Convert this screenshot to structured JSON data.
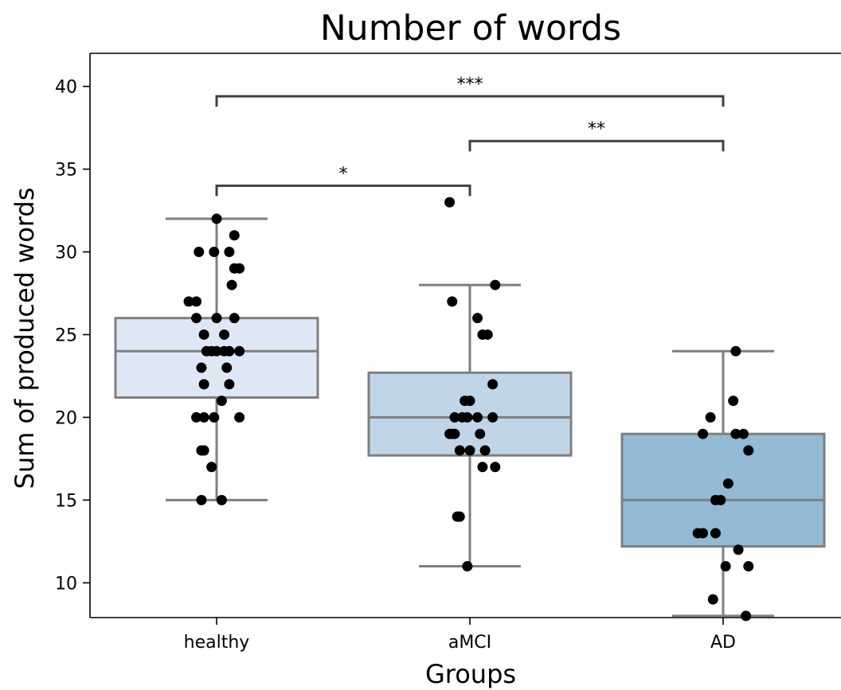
{
  "chart_data": {
    "type": "box",
    "title": "Number of words",
    "xlabel": "Groups",
    "ylabel": "Sum of produced words",
    "ylim": [
      7.9,
      42
    ],
    "yticks": [
      10,
      15,
      20,
      25,
      30,
      35,
      40
    ],
    "categories": [
      "healthy",
      "aMCI",
      "AD"
    ],
    "groups": [
      {
        "name": "healthy",
        "color": "#dde8f4",
        "min": 15,
        "q1": 21.2,
        "median": 24,
        "q3": 26,
        "max": 32,
        "points": [
          {
            "dx": 0.0,
            "y": 32
          },
          {
            "dx": 0.07,
            "y": 31
          },
          {
            "dx": -0.01,
            "y": 30
          },
          {
            "dx": -0.07,
            "y": 30
          },
          {
            "dx": 0.05,
            "y": 30
          },
          {
            "dx": 0.07,
            "y": 29
          },
          {
            "dx": 0.09,
            "y": 29
          },
          {
            "dx": 0.06,
            "y": 28
          },
          {
            "dx": -0.11,
            "y": 27
          },
          {
            "dx": -0.08,
            "y": 27
          },
          {
            "dx": -0.08,
            "y": 26
          },
          {
            "dx": 0.0,
            "y": 26
          },
          {
            "dx": 0.07,
            "y": 26
          },
          {
            "dx": -0.05,
            "y": 25
          },
          {
            "dx": 0.03,
            "y": 25
          },
          {
            "dx": -0.04,
            "y": 24
          },
          {
            "dx": -0.02,
            "y": 24
          },
          {
            "dx": 0.0,
            "y": 24
          },
          {
            "dx": 0.03,
            "y": 24
          },
          {
            "dx": 0.05,
            "y": 24
          },
          {
            "dx": 0.09,
            "y": 24
          },
          {
            "dx": -0.06,
            "y": 23
          },
          {
            "dx": 0.04,
            "y": 23
          },
          {
            "dx": -0.05,
            "y": 22
          },
          {
            "dx": 0.05,
            "y": 22
          },
          {
            "dx": 0.02,
            "y": 21
          },
          {
            "dx": -0.08,
            "y": 20
          },
          {
            "dx": -0.05,
            "y": 20
          },
          {
            "dx": -0.01,
            "y": 20
          },
          {
            "dx": 0.09,
            "y": 20
          },
          {
            "dx": -0.06,
            "y": 18
          },
          {
            "dx": -0.05,
            "y": 18
          },
          {
            "dx": -0.02,
            "y": 17
          },
          {
            "dx": -0.06,
            "y": 15
          },
          {
            "dx": 0.02,
            "y": 15
          }
        ]
      },
      {
        "name": "aMCI",
        "color": "#c0d5e7",
        "min": 11,
        "q1": 17.7,
        "median": 20,
        "q3": 22.7,
        "max": 28,
        "points": [
          {
            "dx": -0.08,
            "y": 33
          },
          {
            "dx": 0.1,
            "y": 28
          },
          {
            "dx": -0.07,
            "y": 27
          },
          {
            "dx": 0.03,
            "y": 26
          },
          {
            "dx": 0.05,
            "y": 25
          },
          {
            "dx": 0.07,
            "y": 25
          },
          {
            "dx": 0.09,
            "y": 22
          },
          {
            "dx": -0.02,
            "y": 21
          },
          {
            "dx": 0.0,
            "y": 21
          },
          {
            "dx": -0.06,
            "y": 20
          },
          {
            "dx": -0.03,
            "y": 20
          },
          {
            "dx": -0.01,
            "y": 20
          },
          {
            "dx": 0.03,
            "y": 20
          },
          {
            "dx": 0.09,
            "y": 20
          },
          {
            "dx": -0.08,
            "y": 19
          },
          {
            "dx": -0.07,
            "y": 19
          },
          {
            "dx": -0.06,
            "y": 19
          },
          {
            "dx": 0.04,
            "y": 19
          },
          {
            "dx": -0.04,
            "y": 18
          },
          {
            "dx": 0.0,
            "y": 18
          },
          {
            "dx": 0.06,
            "y": 18
          },
          {
            "dx": 0.05,
            "y": 17
          },
          {
            "dx": 0.1,
            "y": 17
          },
          {
            "dx": -0.05,
            "y": 14
          },
          {
            "dx": -0.04,
            "y": 14
          },
          {
            "dx": -0.01,
            "y": 11
          }
        ]
      },
      {
        "name": "AD",
        "color": "#92bad5",
        "min": 8,
        "q1": 12.2,
        "median": 15,
        "q3": 19,
        "max": 24,
        "points": [
          {
            "dx": 0.05,
            "y": 24
          },
          {
            "dx": 0.04,
            "y": 21
          },
          {
            "dx": -0.05,
            "y": 20
          },
          {
            "dx": -0.08,
            "y": 19
          },
          {
            "dx": 0.05,
            "y": 19
          },
          {
            "dx": 0.08,
            "y": 19
          },
          {
            "dx": 0.1,
            "y": 18
          },
          {
            "dx": 0.02,
            "y": 16
          },
          {
            "dx": -0.03,
            "y": 15
          },
          {
            "dx": -0.01,
            "y": 15
          },
          {
            "dx": -0.1,
            "y": 13
          },
          {
            "dx": -0.08,
            "y": 13
          },
          {
            "dx": -0.03,
            "y": 13
          },
          {
            "dx": 0.06,
            "y": 12
          },
          {
            "dx": 0.01,
            "y": 11
          },
          {
            "dx": 0.1,
            "y": 11
          },
          {
            "dx": -0.04,
            "y": 9
          },
          {
            "dx": 0.09,
            "y": 8
          }
        ]
      }
    ],
    "significance": [
      {
        "from": 0,
        "to": 1,
        "y": 34,
        "label": "*"
      },
      {
        "from": 1,
        "to": 2,
        "y": 36.7,
        "label": "**"
      },
      {
        "from": 0,
        "to": 2,
        "y": 39.4,
        "label": "***"
      }
    ]
  }
}
